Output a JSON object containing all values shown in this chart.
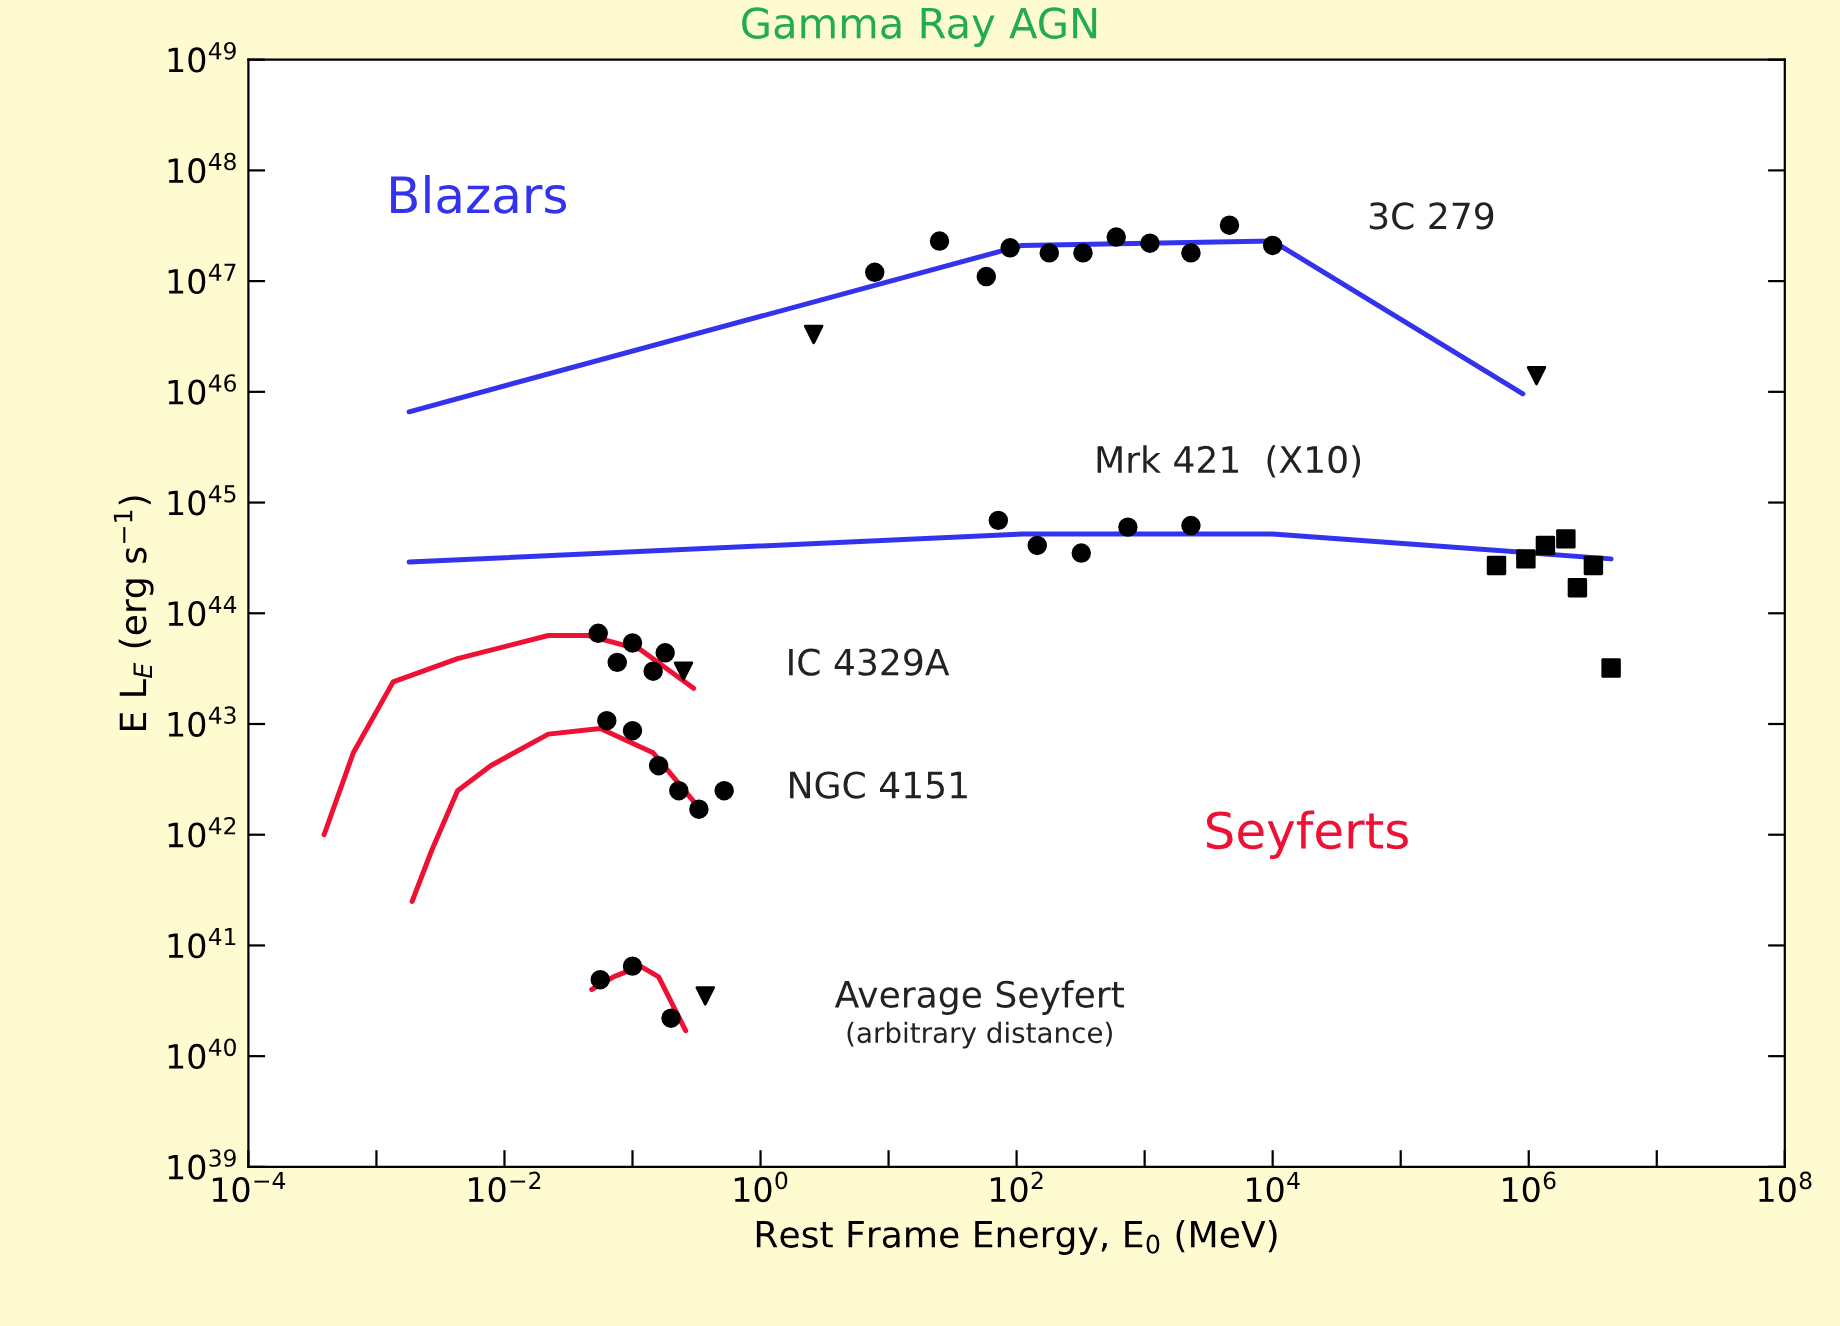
{
  "chart_data": {
    "type": "line",
    "title": "Gamma Ray AGN",
    "xlabel": "Rest Frame Energy, E$_{0}$ (MeV)",
    "ylabel": "E L$_{E}$ (erg s$^{−1}$)",
    "log": "xy",
    "grid": false,
    "xlim": [
      0.0001,
      100000000.0
    ],
    "ylim": [
      1e+39,
      1e+49
    ],
    "xticks": [
      {
        "value": 0.0001,
        "label": "10$^{−4}$"
      },
      {
        "value": 0.001,
        "label": null
      },
      {
        "value": 0.01,
        "label": "10$^{−2}$"
      },
      {
        "value": 0.1,
        "label": null
      },
      {
        "value": 1,
        "label": "10$^{0}$"
      },
      {
        "value": 10,
        "label": null
      },
      {
        "value": 100,
        "label": "10$^{2}$"
      },
      {
        "value": 1000,
        "label": null
      },
      {
        "value": 10000.0,
        "label": "10$^{4}$"
      },
      {
        "value": 100000.0,
        "label": null
      },
      {
        "value": 1000000.0,
        "label": "10$^{6}$"
      },
      {
        "value": 10000000.0,
        "label": null
      },
      {
        "value": 100000000.0,
        "label": "10$^{8}$"
      }
    ],
    "yticks": [
      {
        "value": 1e+39,
        "label": "10$^{39}$"
      },
      {
        "value": 1e+40,
        "label": "10$^{40}$"
      },
      {
        "value": 1e+41,
        "label": "10$^{41}$"
      },
      {
        "value": 1e+42,
        "label": "10$^{42}$"
      },
      {
        "value": 1e+43,
        "label": "10$^{43}$"
      },
      {
        "value": 1e+44,
        "label": "10$^{44}$"
      },
      {
        "value": 1e+45,
        "label": "10$^{45}$"
      },
      {
        "value": 1e+46,
        "label": "10$^{46}$"
      },
      {
        "value": 1e+47,
        "label": "10$^{47}$"
      },
      {
        "value": 1e+48,
        "label": "10$^{48}$"
      },
      {
        "value": 1e+49,
        "label": "10$^{49}$"
      }
    ],
    "series": [
      {
        "color": "#3333ee",
        "x": [
          0.0018,
          110,
          10000,
          900000
        ],
        "values": [
          6.6e+45,
          2.1e+47,
          2.3e+47,
          9.6e+45
        ],
        "marker": "none"
      },
      {
        "color": "#3333ee",
        "x": [
          0.0018,
          110,
          10000,
          4400000.0
        ],
        "values": [
          2.9e+44,
          5.2e+44,
          5.2e+44,
          3.1e+44
        ],
        "marker": "none"
      },
      {
        "color": "#ee1133",
        "x": [
          0.00039,
          0.00066,
          0.00135,
          0.0043,
          0.022,
          0.045,
          0.115,
          0.3
        ],
        "values": [
          1e+42,
          5.5e+42,
          2.4e+43,
          3.9e+43,
          6.3e+43,
          6.3e+43,
          4.7e+43,
          2.1e+43
        ],
        "marker": "none"
      },
      {
        "color": "#ee1133",
        "x": [
          0.0019,
          0.0027,
          0.0043,
          0.0078,
          0.022,
          0.056,
          0.145,
          0.3
        ],
        "values": [
          2.5e+41,
          7.2e+41,
          2.5e+42,
          4.2e+42,
          8.1e+42,
          9.1e+42,
          5.5e+42,
          2e+42
        ],
        "marker": "none"
      },
      {
        "color": "#ee1133",
        "x": [
          0.048,
          0.071,
          0.115,
          0.16,
          0.26
        ],
        "values": [
          4e+40,
          5.2e+40,
          6.5e+40,
          5.2e+40,
          1.7e+40
        ],
        "marker": "none"
      },
      {
        "type": "scatter",
        "color": "#000000",
        "marker": "circle",
        "x": [
          7.8,
          25,
          58,
          89,
          180,
          330,
          600,
          1100,
          2300,
          4600,
          10000
        ],
        "values": [
          1.2e+47,
          2.3e+47,
          1.1e+47,
          2e+47,
          1.8e+47,
          1.8e+47,
          2.5e+47,
          2.2e+47,
          1.8e+47,
          3.2e+47,
          2.1e+47
        ]
      },
      {
        "type": "scatter",
        "color": "#000000",
        "marker": "circle",
        "x": [
          72,
          145,
          320,
          740,
          2300
        ],
        "values": [
          6.9e+44,
          4.1e+44,
          3.5e+44,
          6e+44,
          6.2e+44
        ]
      },
      {
        "type": "scatter",
        "color": "#000000",
        "marker": "square",
        "x": [
          560000.0,
          950000.0,
          1350000.0,
          1950000.0,
          2400000.0,
          3200000.0,
          4400000.0
        ],
        "values": [
          2.7e+44,
          3.1e+44,
          4.1e+44,
          4.7e+44,
          1.7e+44,
          2.7e+44,
          3.2e+43
        ]
      },
      {
        "type": "scatter",
        "color": "#000000",
        "marker": "circle",
        "x": [
          0.054,
          0.076,
          0.1,
          0.145,
          0.18
        ],
        "values": [
          6.6e+43,
          3.6e+43,
          5.4e+43,
          3e+43,
          4.4e+43
        ]
      },
      {
        "type": "scatter",
        "color": "#000000",
        "marker": "circle",
        "x": [
          0.063,
          0.1,
          0.16,
          0.23,
          0.33,
          0.52
        ],
        "values": [
          1.07e+43,
          8.7e+42,
          4.2e+42,
          2.5e+42,
          1.7e+42,
          2.5e+42
        ]
      },
      {
        "type": "scatter",
        "color": "#000000",
        "marker": "circle",
        "x": [
          0.056,
          0.1,
          0.2
        ],
        "values": [
          4.9e+40,
          6.5e+40,
          2.2e+40
        ]
      },
      {
        "type": "scatter",
        "color": "#000000",
        "marker": "triangle",
        "x": [
          2.6,
          1150000.0,
          0.25,
          0.37
        ],
        "values": [
          3.3e+46,
          1.4e+46,
          3e+43,
          3.5e+40
        ]
      }
    ],
    "annotations": [
      "Blazars",
      "3C 279",
      "Mrk 421  (X10)",
      "IC 4329A",
      "NGC 4151",
      "Seyferts",
      "Average Seyfert",
      "(arbitrary distance)"
    ]
  }
}
